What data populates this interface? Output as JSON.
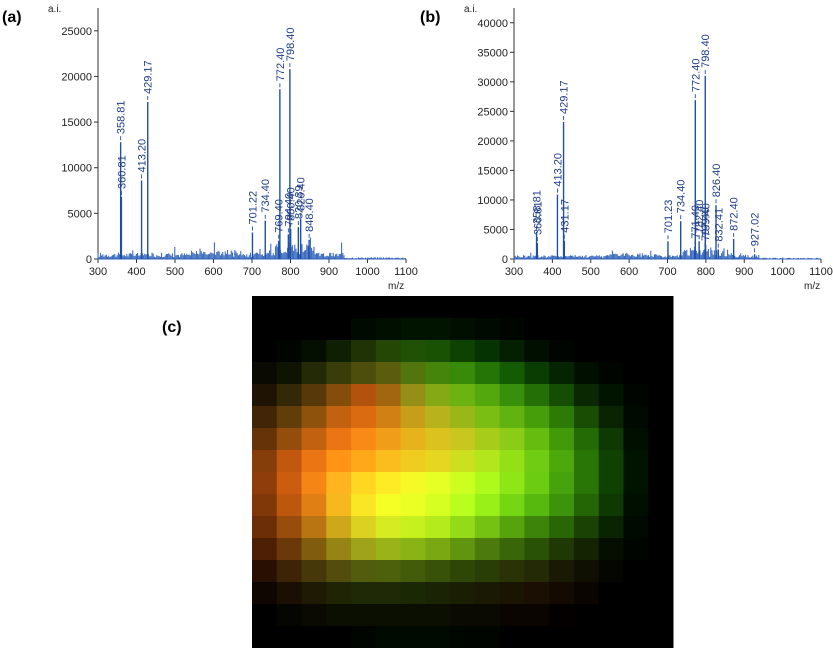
{
  "labels": {
    "a": "(a)",
    "b": "(b)",
    "c": "(c)"
  },
  "colors": {
    "spectrum": "#1f4fa8",
    "peak_label": "#1f3c88"
  },
  "chart_data": [
    {
      "type": "line",
      "panel": "(a)",
      "xlabel": "m/z",
      "ylabel": "a.i.",
      "xlim": [
        300,
        1100
      ],
      "ylim": [
        0,
        27500
      ],
      "xticks": [
        300,
        400,
        500,
        600,
        700,
        800,
        900,
        1000,
        1100
      ],
      "yticks": [
        0,
        5000,
        10000,
        15000,
        20000,
        25000
      ],
      "peaks": [
        {
          "x": 358.81,
          "y": 12800,
          "label": "358.81"
        },
        {
          "x": 360.81,
          "y": 6800,
          "label": "360.81"
        },
        {
          "x": 413.2,
          "y": 8600,
          "label": "413.20"
        },
        {
          "x": 429.17,
          "y": 17200,
          "label": "429.17"
        },
        {
          "x": 701.22,
          "y": 2900,
          "label": "701.22"
        },
        {
          "x": 734.4,
          "y": 4200,
          "label": "734.40"
        },
        {
          "x": 769.4,
          "y": 2000,
          "label": "769.40"
        },
        {
          "x": 772.4,
          "y": 18600,
          "label": "772.40"
        },
        {
          "x": 794.4,
          "y": 2700,
          "label": "794.40"
        },
        {
          "x": 798.4,
          "y": 20800,
          "label": "798.40"
        },
        {
          "x": 800.4,
          "y": 3300,
          "label": "800.40"
        },
        {
          "x": 820.39,
          "y": 3500,
          "label": "820.39"
        },
        {
          "x": 826.4,
          "y": 4400,
          "label": "826.40"
        },
        {
          "x": 848.4,
          "y": 2100,
          "label": "848.40"
        }
      ],
      "label_overlays": [
        "41",
        "73.40",
        "1"
      ]
    },
    {
      "type": "line",
      "panel": "(b)",
      "xlabel": "m/z",
      "ylabel": "a.i.",
      "xlim": [
        300,
        1100
      ],
      "ylim": [
        0,
        42500
      ],
      "xticks": [
        300,
        400,
        500,
        600,
        700,
        800,
        900,
        1000,
        1100
      ],
      "yticks": [
        0,
        5000,
        10000,
        15000,
        20000,
        25000,
        30000,
        35000,
        40000
      ],
      "peaks": [
        {
          "x": 358.81,
          "y": 4600,
          "label": "358.81"
        },
        {
          "x": 360.81,
          "y": 2700,
          "label": "360.81"
        },
        {
          "x": 413.2,
          "y": 10900,
          "label": "413.20"
        },
        {
          "x": 429.17,
          "y": 23200,
          "label": "429.17"
        },
        {
          "x": 431.17,
          "y": 3100,
          "label": "431.17"
        },
        {
          "x": 701.23,
          "y": 3000,
          "label": "701.23"
        },
        {
          "x": 734.4,
          "y": 6400,
          "label": "734.40"
        },
        {
          "x": 771.4,
          "y": 2100,
          "label": "771.40"
        },
        {
          "x": 772.4,
          "y": 26900,
          "label": "772.40"
        },
        {
          "x": 782.4,
          "y": 3000,
          "label": "782.40"
        },
        {
          "x": 797.4,
          "y": 1700,
          "label": "797.40"
        },
        {
          "x": 798.4,
          "y": 31000,
          "label": "798.40"
        },
        {
          "x": 799.4,
          "y": 2400,
          "label": "799.40"
        },
        {
          "x": 826.4,
          "y": 9100,
          "label": "826.40"
        },
        {
          "x": 832.41,
          "y": 1600,
          "label": "832.41"
        },
        {
          "x": 872.4,
          "y": 3400,
          "label": "872.40"
        },
        {
          "x": 927.02,
          "y": 800,
          "label": "927.02"
        }
      ],
      "label_overlays": [
        "10",
        "18.40",
        "1"
      ]
    },
    {
      "type": "heatmap",
      "panel": "(c)",
      "rows": 16,
      "cols": 17,
      "color_mode": "rgb",
      "red": [
        [
          0,
          0,
          0,
          0,
          0,
          0,
          0,
          0,
          0,
          0,
          0,
          0,
          0,
          0,
          0,
          0,
          0
        ],
        [
          0,
          0,
          0,
          0,
          0,
          0,
          0,
          0,
          0,
          0,
          0,
          0,
          0,
          0,
          0,
          0,
          0
        ],
        [
          0,
          0,
          0.02,
          0.06,
          0.12,
          0.14,
          0.12,
          0.1,
          0.05,
          0.02,
          0.02,
          0,
          0,
          0,
          0,
          0,
          0
        ],
        [
          0.04,
          0.06,
          0.14,
          0.22,
          0.3,
          0.36,
          0.32,
          0.27,
          0.22,
          0.14,
          0.08,
          0.04,
          0.02,
          0,
          0,
          0,
          0
        ],
        [
          0.12,
          0.2,
          0.34,
          0.52,
          0.7,
          0.64,
          0.58,
          0.52,
          0.42,
          0.32,
          0.22,
          0.14,
          0.08,
          0.04,
          0,
          0,
          0
        ],
        [
          0.26,
          0.38,
          0.56,
          0.76,
          0.86,
          0.82,
          0.78,
          0.72,
          0.6,
          0.48,
          0.38,
          0.28,
          0.18,
          0.1,
          0.04,
          0,
          0
        ],
        [
          0.4,
          0.58,
          0.76,
          0.92,
          0.98,
          0.94,
          0.9,
          0.86,
          0.78,
          0.66,
          0.54,
          0.4,
          0.26,
          0.14,
          0.06,
          0,
          0
        ],
        [
          0.52,
          0.76,
          0.92,
          1.0,
          1.0,
          0.98,
          0.94,
          0.9,
          0.8,
          0.7,
          0.58,
          0.44,
          0.3,
          0.16,
          0.06,
          0,
          0
        ],
        [
          0.56,
          0.8,
          0.96,
          1.0,
          1.0,
          1.0,
          0.96,
          0.9,
          0.8,
          0.68,
          0.56,
          0.42,
          0.28,
          0.16,
          0.06,
          0,
          0
        ],
        [
          0.5,
          0.74,
          0.88,
          0.96,
          0.98,
          0.96,
          0.92,
          0.84,
          0.72,
          0.6,
          0.46,
          0.34,
          0.24,
          0.14,
          0.06,
          0,
          0
        ],
        [
          0.42,
          0.6,
          0.72,
          0.8,
          0.86,
          0.84,
          0.78,
          0.7,
          0.58,
          0.46,
          0.34,
          0.24,
          0.16,
          0.1,
          0.04,
          0,
          0
        ],
        [
          0.3,
          0.42,
          0.5,
          0.58,
          0.62,
          0.6,
          0.54,
          0.48,
          0.38,
          0.3,
          0.22,
          0.16,
          0.12,
          0.08,
          0.02,
          0,
          0
        ],
        [
          0.16,
          0.24,
          0.28,
          0.32,
          0.32,
          0.3,
          0.26,
          0.22,
          0.18,
          0.16,
          0.16,
          0.14,
          0.1,
          0.06,
          0.02,
          0,
          0
        ],
        [
          0.06,
          0.1,
          0.12,
          0.12,
          0.12,
          0.12,
          0.1,
          0.1,
          0.1,
          0.1,
          0.1,
          0.1,
          0.08,
          0.04,
          0,
          0,
          0
        ],
        [
          0,
          0.02,
          0.04,
          0.04,
          0.04,
          0.04,
          0.04,
          0.04,
          0.04,
          0.04,
          0.04,
          0.04,
          0.02,
          0,
          0,
          0,
          0
        ],
        [
          0,
          0,
          0,
          0,
          0,
          0,
          0,
          0,
          0,
          0,
          0,
          0,
          0,
          0,
          0,
          0,
          0
        ]
      ],
      "green": [
        [
          0,
          0,
          0,
          0,
          0,
          0,
          0,
          0,
          0,
          0,
          0,
          0,
          0,
          0,
          0,
          0,
          0
        ],
        [
          0,
          0,
          0,
          0,
          0.04,
          0.06,
          0.08,
          0.08,
          0.06,
          0.04,
          0.02,
          0,
          0,
          0,
          0,
          0,
          0
        ],
        [
          0,
          0.02,
          0.06,
          0.12,
          0.2,
          0.28,
          0.32,
          0.32,
          0.26,
          0.2,
          0.12,
          0.06,
          0.02,
          0,
          0,
          0,
          0
        ],
        [
          0.04,
          0.08,
          0.16,
          0.24,
          0.3,
          0.36,
          0.46,
          0.52,
          0.54,
          0.46,
          0.36,
          0.24,
          0.14,
          0.06,
          0.02,
          0,
          0
        ],
        [
          0.08,
          0.16,
          0.22,
          0.3,
          0.32,
          0.4,
          0.56,
          0.66,
          0.7,
          0.66,
          0.56,
          0.44,
          0.3,
          0.16,
          0.08,
          0.02,
          0
        ],
        [
          0.14,
          0.24,
          0.32,
          0.38,
          0.42,
          0.5,
          0.62,
          0.7,
          0.72,
          0.74,
          0.7,
          0.62,
          0.48,
          0.3,
          0.14,
          0.04,
          0
        ],
        [
          0.2,
          0.3,
          0.38,
          0.46,
          0.54,
          0.62,
          0.7,
          0.76,
          0.78,
          0.8,
          0.8,
          0.74,
          0.6,
          0.42,
          0.22,
          0.06,
          0
        ],
        [
          0.24,
          0.34,
          0.46,
          0.58,
          0.66,
          0.74,
          0.8,
          0.84,
          0.88,
          0.9,
          0.88,
          0.8,
          0.66,
          0.46,
          0.26,
          0.08,
          0
        ],
        [
          0.24,
          0.36,
          0.52,
          0.7,
          0.84,
          0.92,
          0.98,
          1.0,
          1.0,
          0.98,
          0.9,
          0.8,
          0.64,
          0.46,
          0.26,
          0.08,
          0
        ],
        [
          0.22,
          0.34,
          0.5,
          0.72,
          0.9,
          1.0,
          1.0,
          1.0,
          1.0,
          0.94,
          0.84,
          0.72,
          0.58,
          0.4,
          0.22,
          0.06,
          0
        ],
        [
          0.18,
          0.3,
          0.46,
          0.66,
          0.82,
          0.92,
          0.94,
          0.92,
          0.86,
          0.76,
          0.64,
          0.52,
          0.4,
          0.26,
          0.14,
          0.04,
          0
        ],
        [
          0.12,
          0.22,
          0.36,
          0.52,
          0.64,
          0.7,
          0.7,
          0.66,
          0.58,
          0.48,
          0.4,
          0.32,
          0.22,
          0.14,
          0.06,
          0.02,
          0
        ],
        [
          0.06,
          0.14,
          0.22,
          0.3,
          0.36,
          0.38,
          0.36,
          0.32,
          0.28,
          0.24,
          0.2,
          0.16,
          0.1,
          0.06,
          0.02,
          0,
          0
        ],
        [
          0.02,
          0.06,
          0.1,
          0.14,
          0.16,
          0.16,
          0.16,
          0.14,
          0.12,
          0.1,
          0.08,
          0.06,
          0.04,
          0.02,
          0,
          0,
          0
        ],
        [
          0,
          0.02,
          0.04,
          0.06,
          0.06,
          0.06,
          0.06,
          0.06,
          0.04,
          0.04,
          0.02,
          0.02,
          0,
          0,
          0,
          0,
          0
        ],
        [
          0,
          0,
          0,
          0,
          0.02,
          0.04,
          0.04,
          0.04,
          0.02,
          0.02,
          0,
          0,
          0,
          0,
          0,
          0,
          0
        ]
      ]
    }
  ]
}
